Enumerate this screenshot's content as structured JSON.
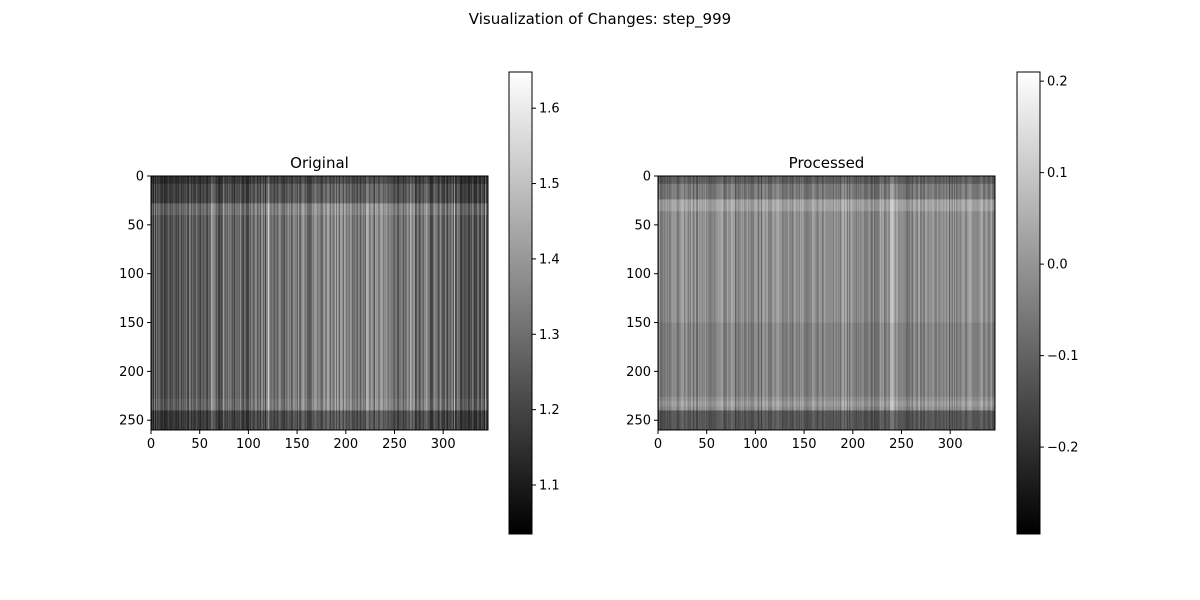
{
  "figure": {
    "suptitle": "Visualization of Changes: step_999"
  },
  "chart_data": [
    {
      "type": "heatmap",
      "title": "Original",
      "colormap": "gray",
      "image_shape": [
        260,
        346
      ],
      "xlim": [
        0,
        346
      ],
      "ylim": [
        260,
        0
      ],
      "x_ticks": [
        0,
        50,
        100,
        150,
        200,
        250,
        300
      ],
      "y_ticks": [
        0,
        50,
        100,
        150,
        200,
        250
      ],
      "colorbar": {
        "range": [
          1.035,
          1.648
        ],
        "ticks": [
          1.1,
          1.2,
          1.3,
          1.4,
          1.5,
          1.6
        ],
        "tick_labels": [
          "1.1",
          "1.2",
          "1.3",
          "1.4",
          "1.5",
          "1.6"
        ]
      },
      "appearance": "vertical streak texture; darker bands near top (rows 0-30) and bottom (rows 230-260); brighter streaks around columns 150-260"
    },
    {
      "type": "heatmap",
      "title": "Processed",
      "colormap": "gray",
      "image_shape": [
        260,
        346
      ],
      "xlim": [
        0,
        346
      ],
      "ylim": [
        260,
        0
      ],
      "x_ticks": [
        0,
        50,
        100,
        150,
        200,
        250,
        300
      ],
      "y_ticks": [
        0,
        50,
        100,
        150,
        200,
        250
      ],
      "colorbar": {
        "range": [
          -0.295,
          0.21
        ],
        "ticks": [
          -0.2,
          -0.1,
          0.0,
          0.1,
          0.2
        ],
        "tick_labels": [
          "−0.2",
          "−0.1",
          "0.0",
          "0.1",
          "0.2"
        ]
      },
      "appearance": "mid-gray vertical streak texture; lighter band near rows 25-35; darker bands at top and bottom edges; bright streak near column 240"
    }
  ]
}
